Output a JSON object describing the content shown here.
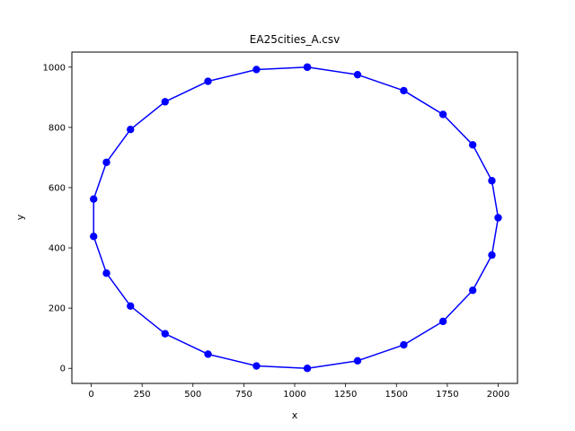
{
  "chart_data": {
    "type": "line",
    "title": "EA25cities_A.csv",
    "xlabel": "x",
    "ylabel": "y",
    "xlim": [
      -95,
      2095
    ],
    "ylim": [
      -50,
      1050
    ],
    "xticks": [
      0,
      250,
      500,
      750,
      1000,
      1250,
      1500,
      1750,
      2000
    ],
    "yticks": [
      0,
      200,
      400,
      600,
      800,
      1000
    ],
    "grid": false,
    "legend": "none",
    "series": [
      {
        "color": "#0000ff",
        "marker": "circle",
        "x": [
          1062,
          1309,
          1536,
          1729,
          1875,
          1969,
          2000,
          1969,
          1875,
          1729,
          1536,
          1309,
          1062,
          812,
          574,
          363,
          193,
          75,
          12,
          12,
          75,
          193,
          363,
          574,
          812,
          1062
        ],
        "y": [
          1000,
          975,
          922,
          843,
          742,
          623,
          500,
          376,
          259,
          156,
          78,
          25,
          0,
          8,
          47,
          115,
          207,
          316,
          438,
          562,
          684,
          793,
          885,
          953,
          992,
          1000
        ]
      }
    ]
  }
}
